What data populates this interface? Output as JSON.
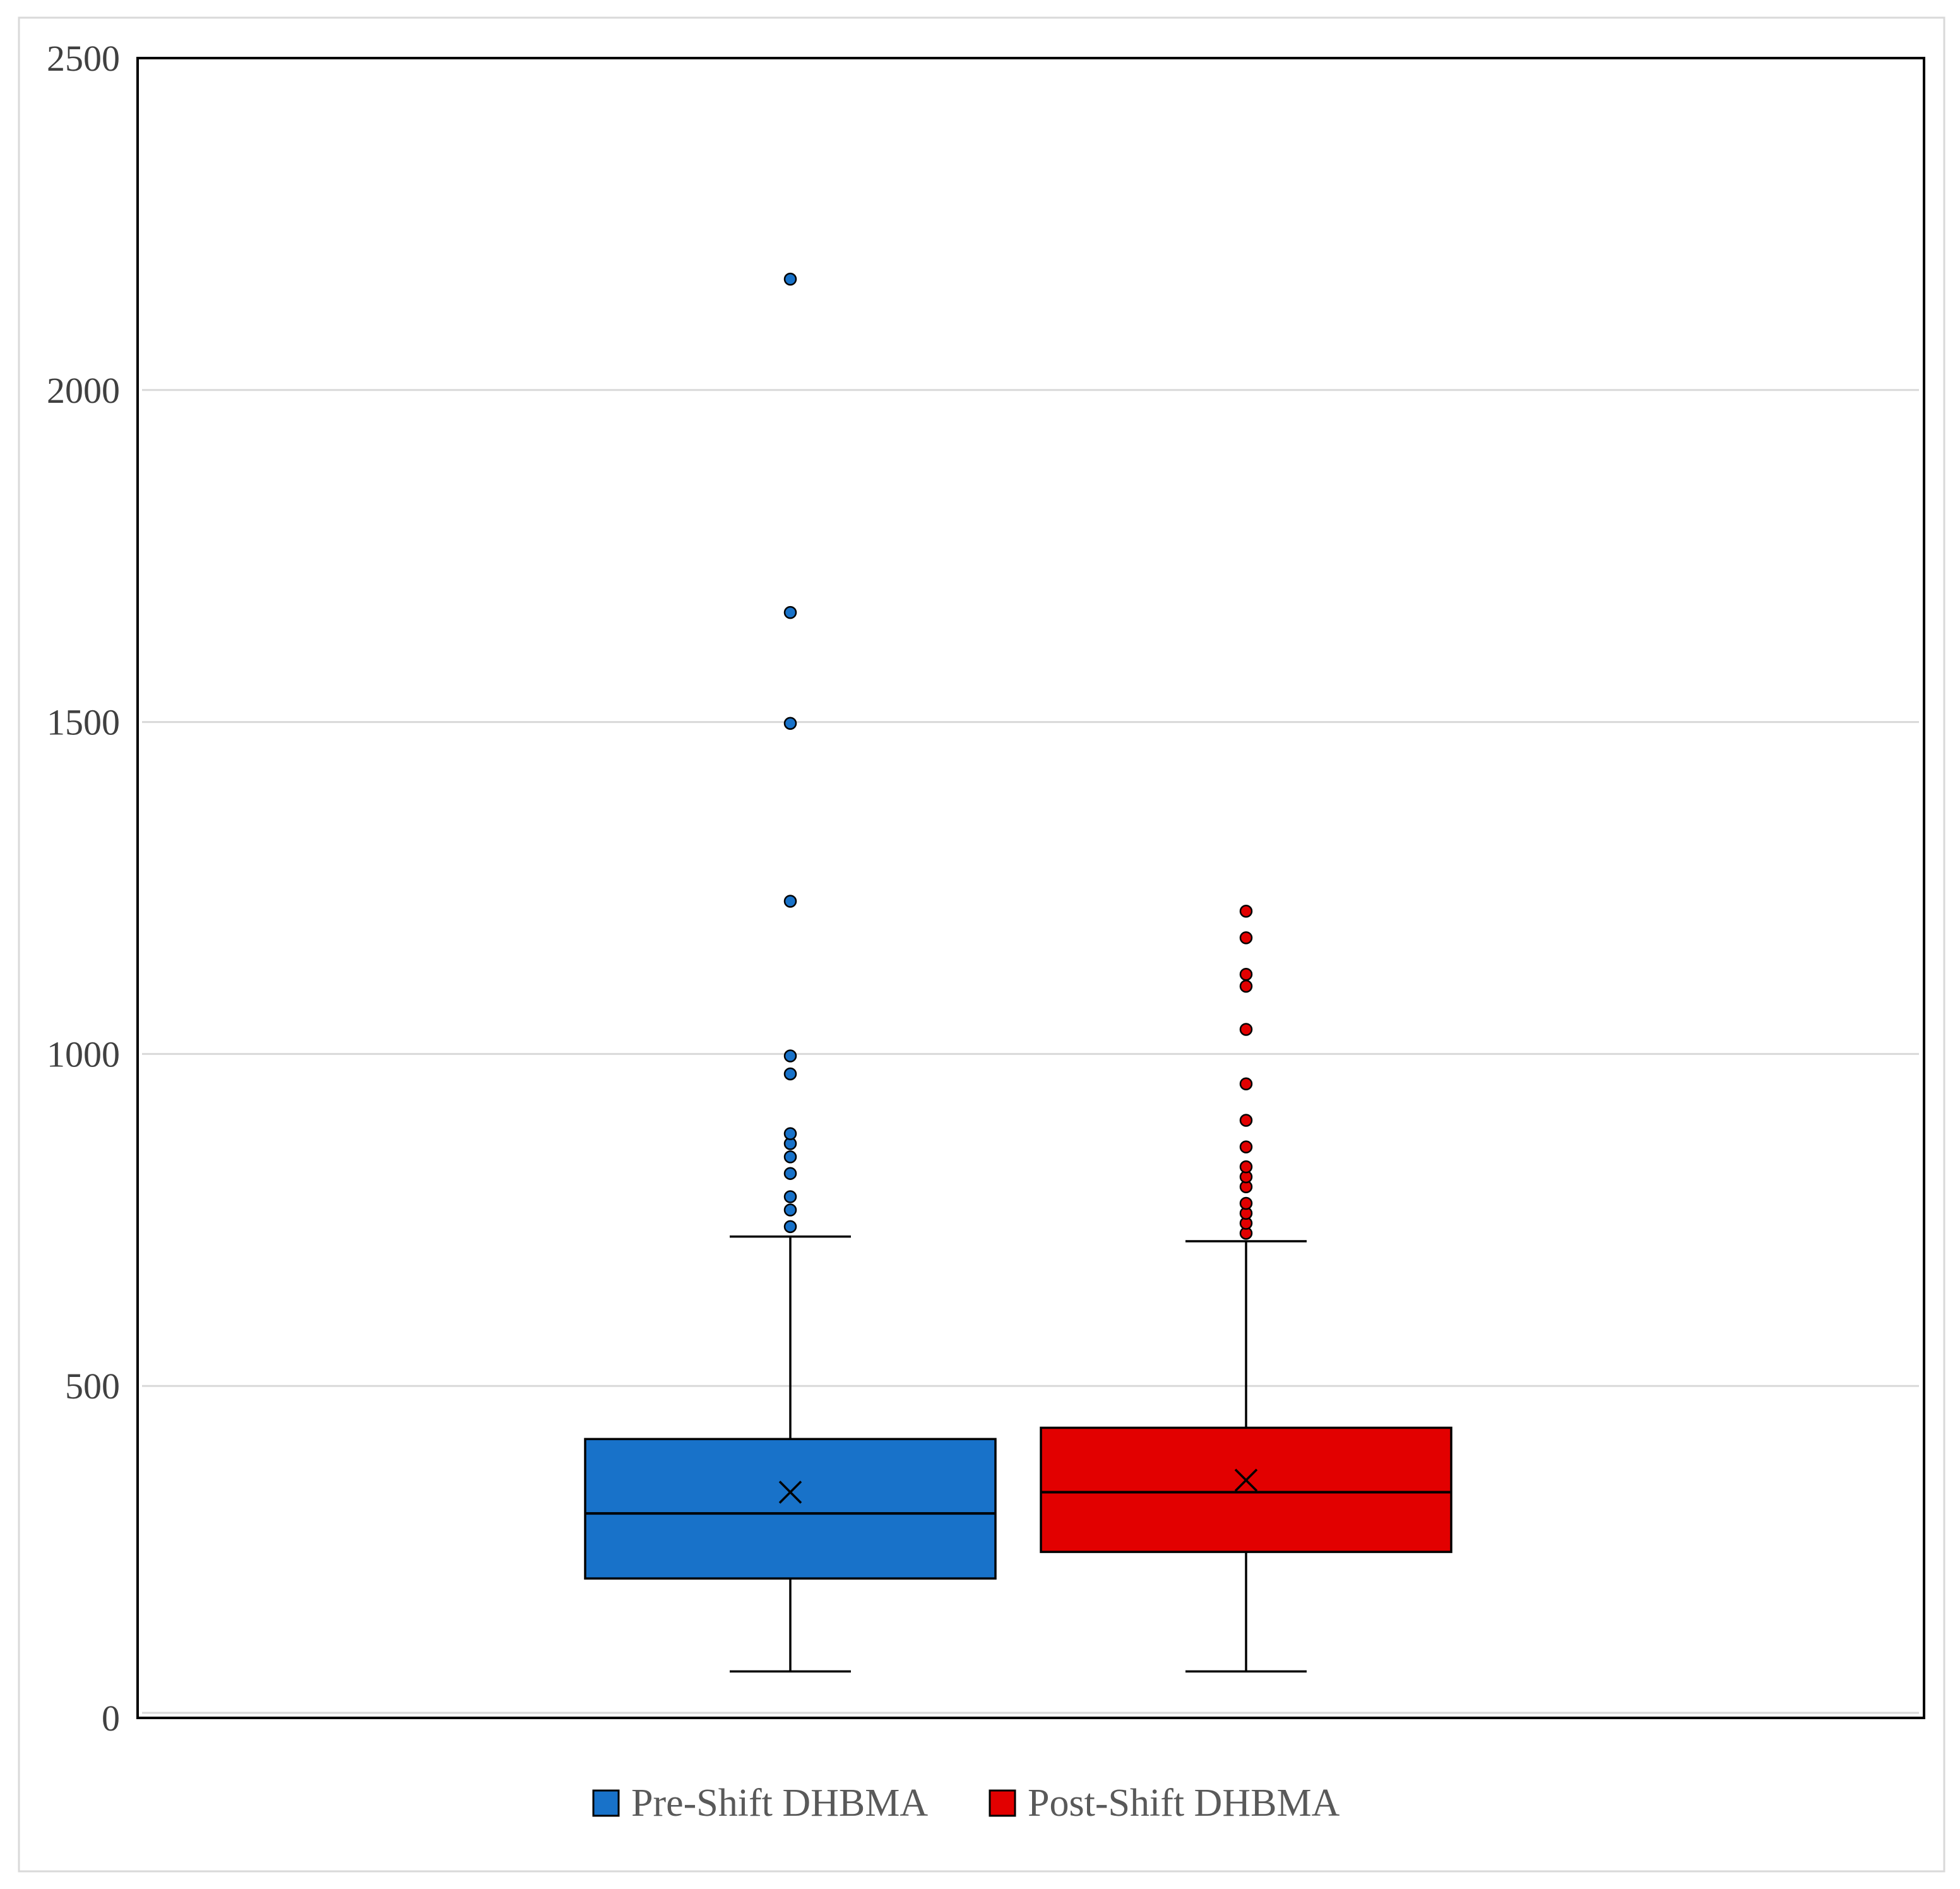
{
  "chart_data": {
    "type": "box",
    "title": "",
    "xlabel": "",
    "ylabel": "",
    "ylim": [
      0,
      2500
    ],
    "yticks": [
      0,
      500,
      1000,
      1500,
      2000,
      2500
    ],
    "ytick_labels": [
      "0",
      "500",
      "1000",
      "1500",
      "2000",
      "2500"
    ],
    "grid": "horizontal",
    "legend_position": "bottom",
    "series": [
      {
        "name": "Pre-Shift DHBMA",
        "color": "#1872c9",
        "whisker_low": 70,
        "q1": 210,
        "median": 308,
        "q3": 420,
        "whisker_high": 725,
        "mean": 340,
        "outliers": [
          740,
          765,
          785,
          820,
          845,
          865,
          880,
          970,
          997,
          1230,
          1498,
          1665,
          2167
        ]
      },
      {
        "name": "Post-Shift DHBMA",
        "color": "#e20000",
        "whisker_low": 70,
        "q1": 250,
        "median": 340,
        "q3": 437,
        "whisker_high": 718,
        "mean": 358,
        "outliers": [
          730,
          745,
          760,
          775,
          800,
          815,
          830,
          860,
          900,
          955,
          1037,
          1102,
          1120,
          1175,
          1215
        ]
      }
    ]
  }
}
